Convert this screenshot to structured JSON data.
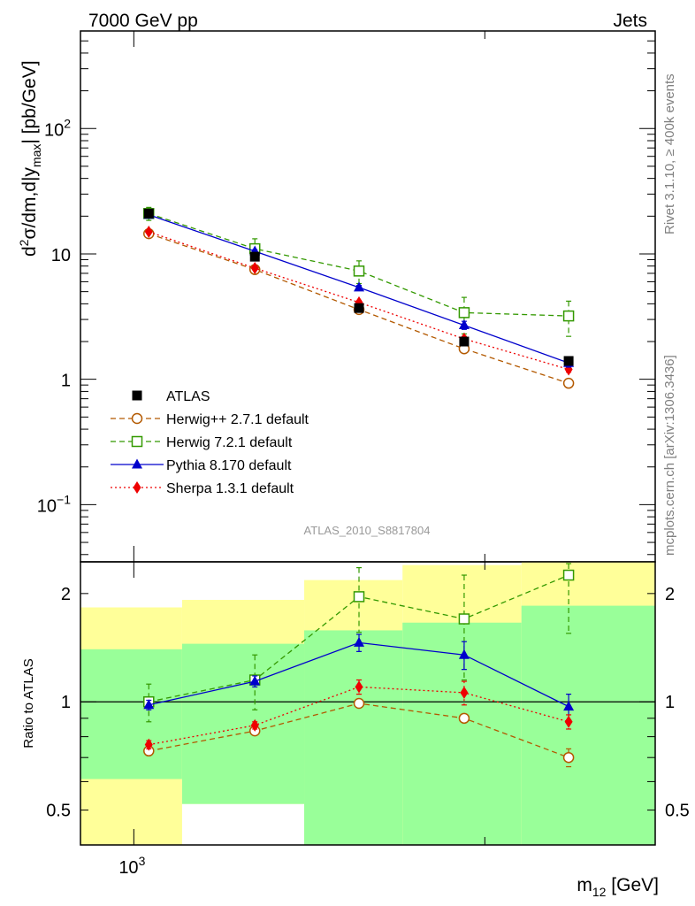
{
  "header": {
    "left": "7000 GeV pp",
    "right": "Jets"
  },
  "side": {
    "rivet": "Rivet 3.1.10, ≥ 400k events",
    "mcplots": "mcplots.cern.ch [arXiv:1306.3436]"
  },
  "watermark": "ATLAS_2010_S8817804",
  "colors": {
    "atlas": "#000000",
    "herwigpp": "#b35900",
    "herwig7": "#339900",
    "pythia": "#0000cc",
    "sherpa": "#ee0000",
    "band_yellow": "#ffff99",
    "band_green": "#99ff99"
  },
  "chart_data": [
    {
      "type": "line",
      "panel": "main",
      "ylabel": "d²σ/dm,d|y_max| [pb/GeV]",
      "yscale": "log",
      "ylim": [
        0.035,
        600
      ],
      "xscale": "log",
      "xlim": [
        900,
        2800
      ],
      "yticks": [
        {
          "v": 0.1,
          "t": "10",
          "sup": "−1"
        },
        {
          "v": 1,
          "t": "1",
          "sup": ""
        },
        {
          "v": 10,
          "t": "10",
          "sup": ""
        },
        {
          "v": 100,
          "t": "10",
          "sup": "2"
        }
      ],
      "legend_position": "lower-left",
      "series": [
        {
          "key": "atlas",
          "name": "ATLAS",
          "style": "data",
          "x": [
            1030,
            1270,
            1560,
            1920,
            2360
          ],
          "y": [
            21,
            9.5,
            3.7,
            2.0,
            1.4
          ],
          "err": [
            0.8,
            0.5,
            0.25,
            0.15,
            0.1
          ]
        },
        {
          "key": "herwigpp",
          "name": "Herwig++ 2.7.1 default",
          "style": "dashed",
          "marker": "circle-open",
          "x": [
            1030,
            1270,
            1560,
            1920,
            2360
          ],
          "y": [
            14.5,
            7.5,
            3.6,
            1.75,
            0.93
          ],
          "err": [
            0.4,
            0.2,
            0.1,
            0.05,
            0.04
          ]
        },
        {
          "key": "herwig7",
          "name": "Herwig 7.2.1 default",
          "style": "dashed",
          "marker": "square-open",
          "x": [
            1030,
            1270,
            1560,
            1920,
            2360
          ],
          "y": [
            21.0,
            11.0,
            7.3,
            3.4,
            3.2
          ],
          "err": [
            2.5,
            2.2,
            1.5,
            1.1,
            1.0
          ]
        },
        {
          "key": "pythia",
          "name": "Pythia 8.170 default",
          "style": "solid",
          "marker": "triangle",
          "x": [
            1030,
            1270,
            1560,
            1920,
            2360
          ],
          "y": [
            20.5,
            10.5,
            5.4,
            2.7,
            1.35
          ],
          "err": [
            0.5,
            0.3,
            0.2,
            0.2,
            0.1
          ]
        },
        {
          "key": "sherpa",
          "name": "Sherpa 1.3.1 default",
          "style": "dotted",
          "marker": "diamond",
          "x": [
            1030,
            1270,
            1560,
            1920,
            2360
          ],
          "y": [
            15.0,
            7.7,
            4.1,
            2.1,
            1.2
          ],
          "err": [
            0.3,
            0.2,
            0.15,
            0.1,
            0.06
          ]
        }
      ]
    },
    {
      "type": "line",
      "panel": "ratio",
      "ylabel": "Ratio to ATLAS",
      "yscale": "log",
      "ylim": [
        0.4,
        2.45
      ],
      "xlabel": "m₁₂ [GeV]",
      "xscale": "log",
      "xlim": [
        900,
        2800
      ],
      "xticks": [
        {
          "v": 1000,
          "t": "10",
          "sup": "3"
        }
      ],
      "yticks": [
        {
          "v": 0.5,
          "t": "0.5"
        },
        {
          "v": 1,
          "t": "1"
        },
        {
          "v": 2,
          "t": "2"
        }
      ],
      "bands": [
        {
          "x0": 900,
          "x1": 1100,
          "yellow": [
            0.4,
            1.83
          ],
          "green": [
            0.61,
            1.4
          ]
        },
        {
          "x0": 1100,
          "x1": 1400,
          "yellow": [
            0.52,
            1.92
          ],
          "green": [
            0.52,
            1.45
          ]
        },
        {
          "x0": 1400,
          "x1": 1700,
          "yellow": [
            0.4,
            2.18
          ],
          "green": [
            0.4,
            1.58
          ]
        },
        {
          "x0": 1700,
          "x1": 2150,
          "yellow": [
            0.4,
            2.4
          ],
          "green": [
            0.4,
            1.66
          ]
        },
        {
          "x0": 2150,
          "x1": 2800,
          "yellow": [
            0.4,
            2.45
          ],
          "green": [
            0.4,
            1.85
          ]
        }
      ],
      "series": [
        {
          "key": "herwigpp",
          "style": "dashed",
          "marker": "circle-open",
          "x": [
            1030,
            1270,
            1560,
            1920,
            2360
          ],
          "y": [
            0.73,
            0.83,
            0.99,
            0.9,
            0.7
          ],
          "err": [
            0.02,
            0.02,
            0.02,
            0.02,
            0.04
          ]
        },
        {
          "key": "herwig7",
          "style": "dashed",
          "marker": "square-open",
          "x": [
            1030,
            1270,
            1560,
            1920,
            2360
          ],
          "y": [
            1.0,
            1.15,
            1.96,
            1.7,
            2.25
          ],
          "err": [
            0.12,
            0.2,
            0.4,
            0.55,
            0.7
          ]
        },
        {
          "key": "pythia",
          "style": "solid",
          "marker": "triangle",
          "x": [
            1030,
            1270,
            1560,
            1920,
            2360
          ],
          "y": [
            0.98,
            1.14,
            1.46,
            1.35,
            0.97
          ],
          "err": [
            0.03,
            0.04,
            0.08,
            0.12,
            0.08
          ]
        },
        {
          "key": "sherpa",
          "style": "dotted",
          "marker": "diamond",
          "x": [
            1030,
            1270,
            1560,
            1920,
            2360
          ],
          "y": [
            0.76,
            0.86,
            1.1,
            1.06,
            0.88
          ],
          "err": [
            0.02,
            0.02,
            0.05,
            0.08,
            0.04
          ]
        }
      ]
    }
  ]
}
